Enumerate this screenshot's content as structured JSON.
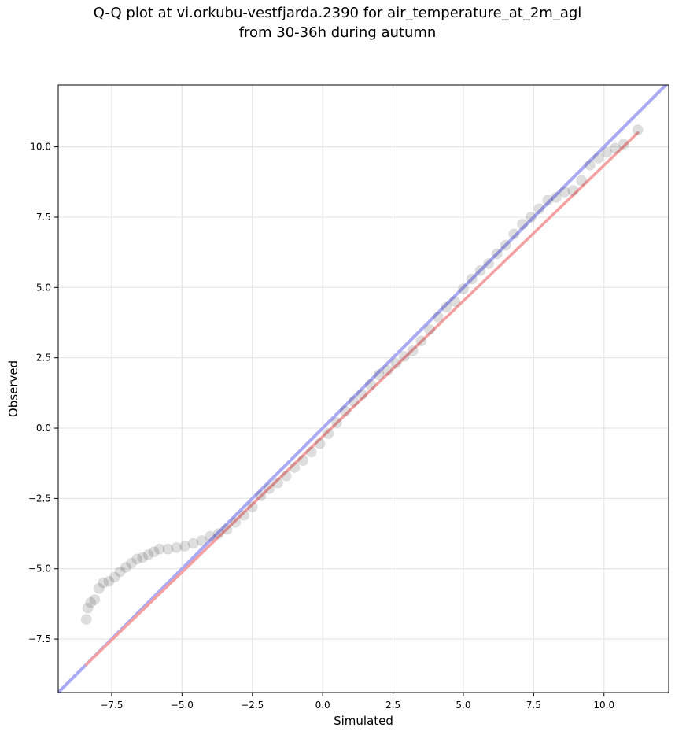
{
  "chart_data": {
    "type": "scatter",
    "title": "Q-Q plot at vi.orkubu-vestfjarda.2390 for air_temperature_at_2m_agl",
    "subtitle": "from 30-36h during autumn",
    "xlabel": "Simulated",
    "ylabel": "Observed",
    "xlim": [
      -9.4,
      12.3
    ],
    "ylim": [
      -9.4,
      12.2
    ],
    "grid": true,
    "x_ticks": [
      -7.5,
      -5.0,
      -2.5,
      0.0,
      2.5,
      5.0,
      7.5,
      10.0
    ],
    "y_ticks": [
      -7.5,
      -5.0,
      -2.5,
      0.0,
      2.5,
      5.0,
      7.5,
      10.0
    ],
    "x_tick_labels": [
      "−7.5",
      "−5.0",
      "−2.5",
      "0.0",
      "2.5",
      "5.0",
      "7.5",
      "10.0"
    ],
    "y_tick_labels": [
      "−7.5",
      "−5.0",
      "−2.5",
      "0.0",
      "2.5",
      "5.0",
      "7.5",
      "10.0"
    ],
    "points": {
      "x": [
        -8.4,
        -8.35,
        -8.25,
        -8.1,
        -7.95,
        -7.8,
        -7.6,
        -7.4,
        -7.2,
        -7.0,
        -6.8,
        -6.6,
        -6.4,
        -6.2,
        -6.0,
        -5.8,
        -5.5,
        -5.2,
        -4.9,
        -4.6,
        -4.3,
        -4.0,
        -3.7,
        -3.4,
        -3.1,
        -2.8,
        -2.5,
        -2.2,
        -1.9,
        -1.6,
        -1.3,
        -1.0,
        -0.7,
        -0.4,
        -0.1,
        0.2,
        0.5,
        0.8,
        1.1,
        1.4,
        1.7,
        2.0,
        2.3,
        2.6,
        2.9,
        3.2,
        3.5,
        3.8,
        4.1,
        4.4,
        4.7,
        5.0,
        5.3,
        5.6,
        5.9,
        6.2,
        6.5,
        6.8,
        7.1,
        7.4,
        7.7,
        8.0,
        8.3,
        8.6,
        8.9,
        9.2,
        9.5,
        9.8,
        10.1,
        10.4,
        10.7,
        11.2
      ],
      "y": [
        -6.8,
        -6.4,
        -6.2,
        -6.1,
        -5.7,
        -5.5,
        -5.45,
        -5.3,
        -5.1,
        -4.95,
        -4.8,
        -4.65,
        -4.6,
        -4.5,
        -4.4,
        -4.3,
        -4.3,
        -4.25,
        -4.2,
        -4.1,
        -4.0,
        -3.85,
        -3.75,
        -3.6,
        -3.35,
        -3.1,
        -2.8,
        -2.4,
        -2.15,
        -1.95,
        -1.7,
        -1.4,
        -1.15,
        -0.85,
        -0.55,
        -0.2,
        0.2,
        0.6,
        0.95,
        1.2,
        1.55,
        1.9,
        2.05,
        2.3,
        2.55,
        2.75,
        3.1,
        3.5,
        3.95,
        4.3,
        4.5,
        4.95,
        5.3,
        5.6,
        5.85,
        6.2,
        6.5,
        6.9,
        7.25,
        7.5,
        7.8,
        8.1,
        8.2,
        8.4,
        8.45,
        8.8,
        9.35,
        9.6,
        9.8,
        9.95,
        10.1,
        10.6
      ]
    },
    "reference_line": {
      "name": "y = x",
      "color": "#a9a9f5"
    },
    "fit_line": {
      "x": [
        -8.4,
        11.2
      ],
      "y": [
        -8.4,
        10.5
      ],
      "color": "#f5a0a0"
    }
  }
}
